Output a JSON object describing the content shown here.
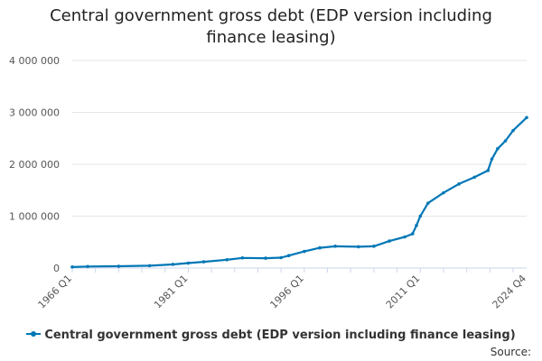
{
  "chart_data": {
    "type": "line",
    "title": "Central government gross debt (EDP version including finance leasing)",
    "xlabel": "",
    "ylabel": "",
    "ylim": [
      0,
      4000000
    ],
    "y_ticks": [
      "0",
      "1 000 000",
      "2 000 000",
      "3 000 000",
      "4 000 000"
    ],
    "y_tick_values": [
      0,
      1000000,
      2000000,
      3000000,
      4000000
    ],
    "x_ticks": [
      "1966 Q1",
      "1981 Q1",
      "1996 Q1",
      "2011 Q1",
      "2024 Q4"
    ],
    "x_range": [
      "1966 Q1",
      "2024 Q4"
    ],
    "grid": "horizontal",
    "legend_position": "bottom",
    "series": [
      {
        "name": "Central government gross debt (EDP version including finance leasing)",
        "color": "#0077b6",
        "points": [
          [
            "1966 Q1",
            20000
          ],
          [
            "1968 Q1",
            30000
          ],
          [
            "1972 Q1",
            35000
          ],
          [
            "1976 Q1",
            45000
          ],
          [
            "1979 Q1",
            70000
          ],
          [
            "1981 Q1",
            95000
          ],
          [
            "1983 Q1",
            120000
          ],
          [
            "1986 Q1",
            160000
          ],
          [
            "1988 Q1",
            195000
          ],
          [
            "1991 Q1",
            190000
          ],
          [
            "1993 Q1",
            200000
          ],
          [
            "1994 Q1",
            240000
          ],
          [
            "1996 Q1",
            320000
          ],
          [
            "1998 Q1",
            390000
          ],
          [
            "2000 Q1",
            420000
          ],
          [
            "2003 Q1",
            410000
          ],
          [
            "2005 Q1",
            420000
          ],
          [
            "2007 Q1",
            520000
          ],
          [
            "2009 Q1",
            600000
          ],
          [
            "2010 Q1",
            660000
          ],
          [
            "2010 Q3",
            820000
          ],
          [
            "2011 Q1",
            1000000
          ],
          [
            "2012 Q1",
            1250000
          ],
          [
            "2014 Q1",
            1450000
          ],
          [
            "2016 Q1",
            1620000
          ],
          [
            "2018 Q1",
            1750000
          ],
          [
            "2019 Q4",
            1880000
          ],
          [
            "2020 Q2",
            2100000
          ],
          [
            "2021 Q1",
            2300000
          ],
          [
            "2022 Q1",
            2450000
          ],
          [
            "2023 Q1",
            2650000
          ],
          [
            "2024 Q4",
            2900000
          ]
        ]
      }
    ]
  },
  "source_label": "Source:"
}
